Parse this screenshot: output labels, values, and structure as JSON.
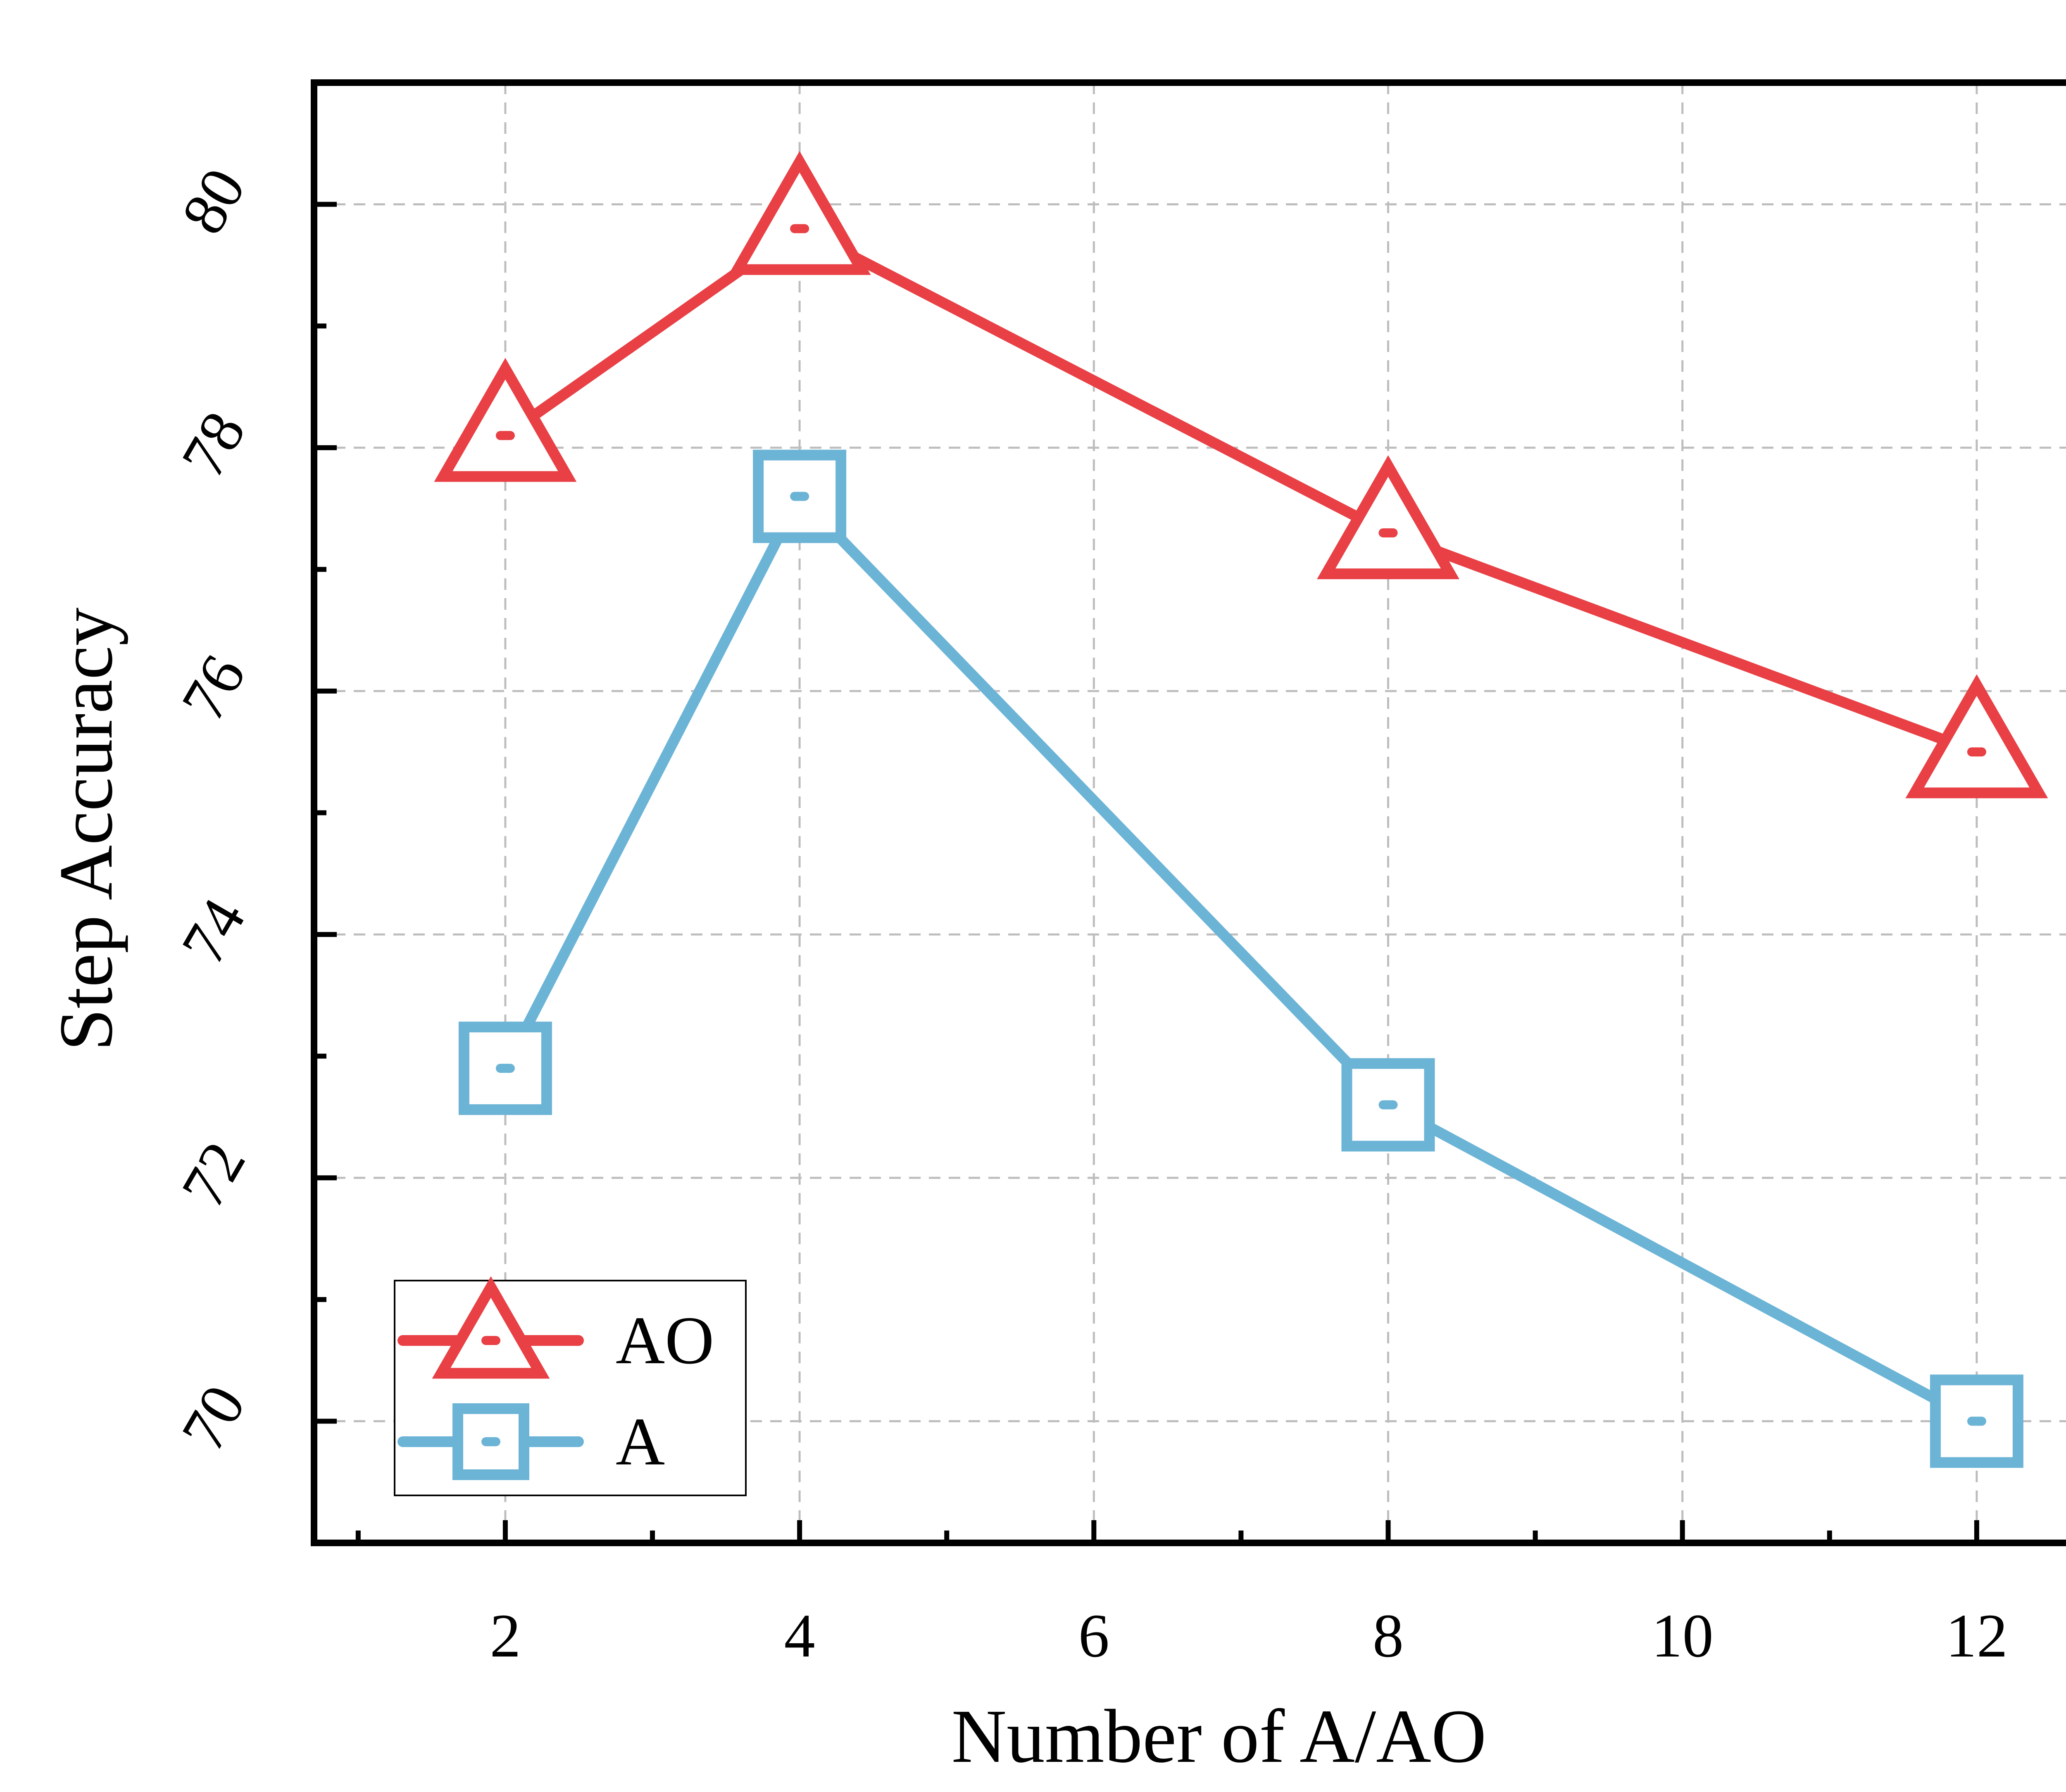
{
  "chart_data": {
    "type": "line",
    "title": "",
    "xlabel": "Number of A/AO",
    "ylabel": "Step Accuracy",
    "xlim": [
      0.7,
      13
    ],
    "ylim": [
      69,
      81
    ],
    "xticks": [
      2,
      4,
      6,
      8,
      10,
      12
    ],
    "xtick_labels": [
      "2",
      "4",
      "6",
      "8",
      "10",
      "12"
    ],
    "yticks": [
      70,
      72,
      74,
      76,
      78,
      80
    ],
    "ytick_labels": [
      "70",
      "72",
      "74",
      "76",
      "78",
      "80"
    ],
    "grid": true,
    "legend_position": "bottom-left",
    "series": [
      {
        "name": "AO",
        "marker": "triangle",
        "color": "#e84045",
        "x": [
          2,
          4,
          8,
          12
        ],
        "y": [
          78.1,
          79.8,
          77.3,
          75.5
        ]
      },
      {
        "name": "A",
        "marker": "square",
        "color": "#6cb4d6",
        "x": [
          2,
          4,
          8,
          12
        ],
        "y": [
          72.9,
          77.6,
          72.6,
          70.0
        ]
      }
    ]
  }
}
